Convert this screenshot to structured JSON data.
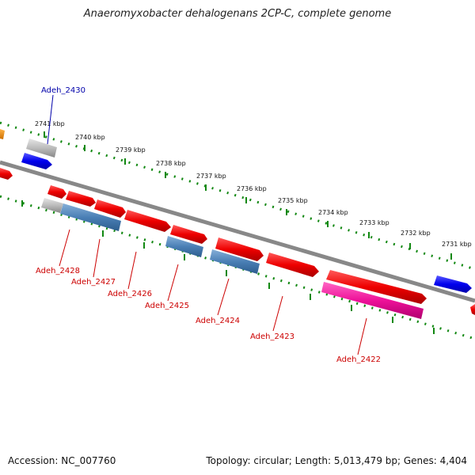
{
  "title": "Anaeromyxobacter dehalogenans 2CP-C, complete genome",
  "footer": {
    "accession": "Accession: NC_007760",
    "stats": "Topology: circular; Length: 5,013,479 bp; Genes: 4,404"
  },
  "kbp_labels": [
    "2741 kbp",
    "2740 kbp",
    "2739 kbp",
    "2738 kbp",
    "2737 kbp",
    "2736 kbp",
    "2735 kbp",
    "2734 kbp",
    "2733 kbp",
    "2732 kbp",
    "2731 kbp"
  ],
  "gene_labels": [
    {
      "text": "Adeh_2430",
      "color": "#0000aa"
    },
    {
      "text": "Adeh_2428",
      "color": "#cc0000"
    },
    {
      "text": "Adeh_2427",
      "color": "#cc0000"
    },
    {
      "text": "Adeh_2426",
      "color": "#cc0000"
    },
    {
      "text": "Adeh_2425",
      "color": "#cc0000"
    },
    {
      "text": "Adeh_2424",
      "color": "#cc0000"
    },
    {
      "text": "Adeh_2423",
      "color": "#cc0000"
    },
    {
      "text": "Adeh_2422",
      "color": "#cc0000"
    }
  ],
  "colors": {
    "cds_red": "#ee0000",
    "cds_blue": "#0000ee",
    "rna_steelblue": "#4a7fb5",
    "pink": "#ee1199",
    "gray": "#aaaaaa",
    "orange": "#ee8800",
    "backbone": "#888888",
    "tick_green": "#118811"
  }
}
